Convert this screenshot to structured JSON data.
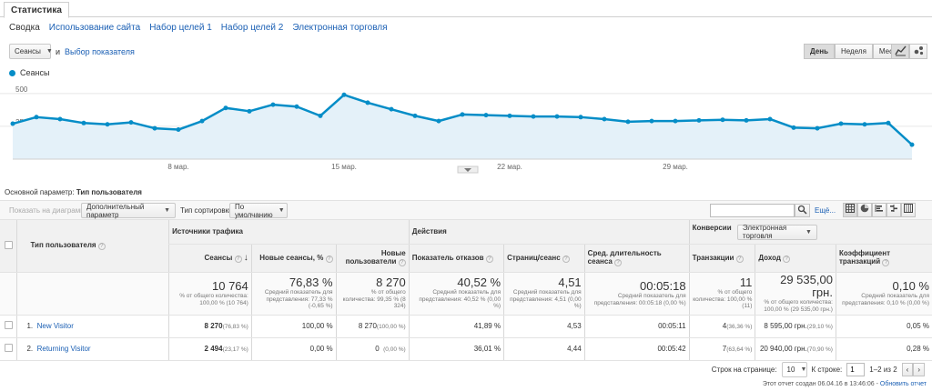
{
  "top_tab": "Статистика",
  "subnav": [
    "Сводка",
    "Использование сайта",
    "Набор целей 1",
    "Набор целей 2",
    "Электронная торговля"
  ],
  "metric_select": "Сеансы",
  "and_label": "и",
  "choose_metric": "Выбор показателя",
  "period_buttons": [
    "День",
    "Неделя",
    "Месяц"
  ],
  "legend_label": "Сеансы",
  "chart_data": {
    "type": "area",
    "series": [
      {
        "name": "Сеансы",
        "values": [
          270,
          320,
          305,
          275,
          265,
          280,
          235,
          225,
          290,
          390,
          365,
          415,
          400,
          330,
          490,
          430,
          380,
          330,
          290,
          340,
          335,
          330,
          325,
          325,
          320,
          305,
          285,
          290,
          290,
          295,
          300,
          295,
          305,
          240,
          235,
          270,
          265,
          275,
          110
        ]
      }
    ],
    "y_ticks": [
      "500",
      "250"
    ],
    "ylim": [
      0,
      575
    ],
    "x_ticks": [
      {
        "index": 7,
        "label": "8 мар."
      },
      {
        "index": 14,
        "label": "15 мар."
      },
      {
        "index": 21,
        "label": "22 мар."
      },
      {
        "index": 28,
        "label": "29 мар."
      }
    ],
    "color": "#058dc7",
    "fill": "#e4f1f9",
    "grid": true
  },
  "primary_param_label": "Основной параметр:",
  "primary_param_value": "Тип пользователя",
  "toolbar": {
    "plot_rows": "Показать на диаграмме",
    "secondary": "Дополнительный параметр",
    "sort_label": "Тип сортировки:",
    "sort_value": "По умолчанию",
    "search_placeholder": "",
    "advanced": "Ещё..."
  },
  "groups": {
    "traffic": "Источники трафика",
    "actions": "Действия",
    "conv": "Конверсии",
    "conv_select": "Электронная торговля"
  },
  "columns": {
    "dim": "Тип пользователя",
    "sessions": "Сеансы",
    "new_pct": "Новые сеансы, %",
    "new_users": "Новые пользователи",
    "bounce": "Показатель отказов",
    "pages": "Страниц/сеанс",
    "duration": "Сред. длительность сеанса",
    "trans": "Транзакции",
    "revenue": "Доход",
    "conv_rate": "Коэффициент транзакций"
  },
  "totals": {
    "sessions": "10 764",
    "sessions_sub": "% от общего количества: 100,00 % (10 764)",
    "new_pct": "76,83 %",
    "new_pct_sub": "Средний показатель для представления: 77,33 % (-0,65 %)",
    "new_users": "8 270",
    "new_users_sub": "% от общего количества: 99,35 % (8 324)",
    "bounce": "40,52 %",
    "bounce_sub": "Средний показатель для представления: 40,52 % (0,00 %)",
    "pages": "4,51",
    "pages_sub": "Средний показатель для представления: 4,51 (0,00 %)",
    "duration": "00:05:18",
    "duration_sub": "Средний показатель для представления: 00:05:18 (0,00 %)",
    "trans": "11",
    "trans_sub": "% от общего количества: 100,00 % (11)",
    "revenue": "29 535,00 грн.",
    "revenue_sub": "% от общего количества: 100,00 % (29 535,00 грн.)",
    "conv_rate": "0,10 %",
    "conv_rate_sub": "Средний показатель для представления: 0,10 % (0,00 %)"
  },
  "rows": [
    {
      "num": "1.",
      "name": "New Visitor",
      "sessions": "8 270",
      "sessions_pct": "(76,83 %)",
      "new_pct": "100,00 %",
      "new_users": "8 270",
      "new_users_pct": "(100,00 %)",
      "bounce": "41,89 %",
      "pages": "4,53",
      "duration": "00:05:11",
      "trans": "4",
      "trans_pct": "(36,36 %)",
      "revenue": "8 595,00 грн.",
      "revenue_pct": "(29,10 %)",
      "conv_rate": "0,05 %"
    },
    {
      "num": "2.",
      "name": "Returning Visitor",
      "sessions": "2 494",
      "sessions_pct": "(23,17 %)",
      "new_pct": "0,00 %",
      "new_users": "0",
      "new_users_pct": "(0,00 %)",
      "bounce": "36,01 %",
      "pages": "4,44",
      "duration": "00:05:42",
      "trans": "7",
      "trans_pct": "(63,64 %)",
      "revenue": "20 940,00 грн.",
      "revenue_pct": "(70,90 %)",
      "conv_rate": "0,28 %"
    }
  ],
  "pager": {
    "rows_label": "Строк на странице:",
    "rows_value": "10",
    "goto_label": "К строке:",
    "goto_value": "1",
    "range": "1–2 из 2"
  },
  "footer": {
    "created": "Этот отчет создан 06.04.16 в 13:46:06 -",
    "refresh": "Обновить отчет"
  }
}
